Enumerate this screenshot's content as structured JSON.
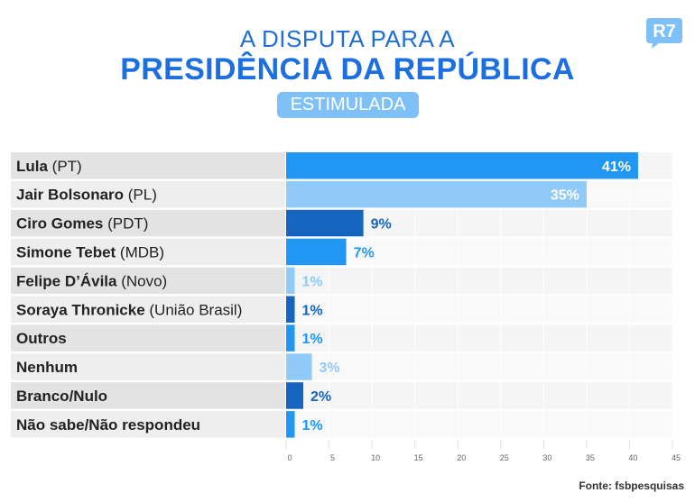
{
  "header": {
    "title_line1": "A DISPUTA PARA A",
    "title_line2": "PRESIDÊNCIA DA REPÚBLICA",
    "badge": "ESTIMULADA",
    "logo": "R7"
  },
  "chart_data": {
    "type": "bar",
    "orientation": "horizontal",
    "categories": [
      {
        "name": "Lula",
        "party": " (PT)"
      },
      {
        "name": "Jair Bolsonaro",
        "party": " (PL)"
      },
      {
        "name": "Ciro Gomes",
        "party": " (PDT)"
      },
      {
        "name": "Simone Tebet",
        "party": " (MDB)"
      },
      {
        "name": "Felipe D’Ávila",
        "party": " (Novo)"
      },
      {
        "name": "Soraya Thronicke",
        "party": " (União Brasil)"
      },
      {
        "name": "Outros",
        "party": ""
      },
      {
        "name": "Nenhum",
        "party": ""
      },
      {
        "name": "Branco/Nulo",
        "party": ""
      },
      {
        "name": "Não sabe/Não respondeu",
        "party": ""
      }
    ],
    "values": [
      41,
      35,
      9,
      7,
      1,
      1,
      1,
      3,
      2,
      1
    ],
    "value_labels": [
      "41%",
      "35%",
      "9%",
      "7%",
      "1%",
      "1%",
      "1%",
      "3%",
      "2%",
      "1%"
    ],
    "bar_colors": [
      "#2196f3",
      "#90caf9",
      "#1565c0",
      "#2196f3",
      "#90caf9",
      "#1565c0",
      "#2196f3",
      "#90caf9",
      "#1565c0",
      "#2196f3"
    ],
    "xlim": [
      0,
      45
    ],
    "xticks": [
      0,
      5,
      10,
      15,
      20,
      25,
      30,
      35,
      40,
      45
    ],
    "grid": true
  },
  "footer": {
    "source": "Fonte: fsbpesquisas"
  }
}
